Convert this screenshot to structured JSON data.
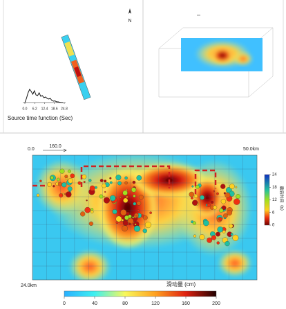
{
  "north_label": "N",
  "source_time_function": {
    "type": "line",
    "title": "Source time function (Sec)",
    "xlim": [
      0,
      24.8
    ],
    "xticks": [
      {
        "value": 0,
        "label": "0.0"
      },
      6.2,
      12.4,
      18.6,
      24.8
    ],
    "ylim": [
      0,
      1
    ],
    "x": [
      0,
      1,
      2,
      3,
      4,
      5,
      6,
      7,
      8,
      9,
      10,
      11,
      12,
      13,
      14,
      15,
      16,
      17,
      18,
      19,
      20,
      21,
      22,
      23,
      24
    ],
    "values": [
      0,
      0.3,
      0.7,
      0.95,
      0.8,
      0.6,
      0.85,
      0.55,
      0.5,
      0.7,
      0.45,
      0.5,
      0.35,
      0.4,
      0.3,
      0.25,
      0.3,
      0.15,
      0.1,
      0.12,
      0.05,
      0.05,
      0.02,
      0,
      0
    ]
  },
  "slip_map": {
    "origin_label": "0.0",
    "strike_label": "160.0",
    "length_label": "50.0km",
    "width_label": "24.0km"
  },
  "time_colorbar": {
    "label": "震后时间（h）",
    "lim": [
      0,
      24
    ],
    "ticks": [
      0,
      6,
      12,
      18,
      24
    ]
  },
  "slip_colorbar": {
    "label": "滑动量 (cm)",
    "lim": [
      0,
      200
    ],
    "ticks": [
      0,
      40,
      80,
      120,
      160,
      200
    ]
  }
}
